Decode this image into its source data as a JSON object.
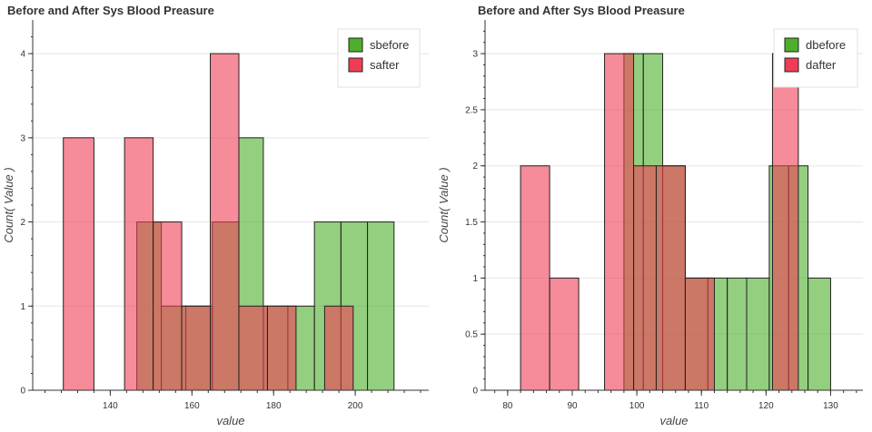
{
  "chart_data": [
    {
      "type": "bar",
      "title": "Before and After Sys Blood Preasure",
      "xlabel": "value",
      "ylabel": "Count( Value )",
      "xlim": [
        121,
        218
      ],
      "ylim": [
        0,
        4.4
      ],
      "xticks": [
        140,
        160,
        180,
        200
      ],
      "yticks": [
        0,
        1,
        2,
        3,
        4
      ],
      "grid": "horizontal",
      "legend_position": "top-right",
      "series": [
        {
          "name": "sbefore",
          "color": "#4daf2a",
          "bins": [
            {
              "x0": 146.5,
              "x1": 152.5,
              "count": 2
            },
            {
              "x0": 152.5,
              "x1": 158.5,
              "count": 1
            },
            {
              "x0": 158.5,
              "x1": 165.0,
              "count": 1
            },
            {
              "x0": 165.0,
              "x1": 171.5,
              "count": 2
            },
            {
              "x0": 171.5,
              "x1": 177.5,
              "count": 3
            },
            {
              "x0": 177.5,
              "x1": 183.5,
              "count": 1
            },
            {
              "x0": 183.5,
              "x1": 190.0,
              "count": 1
            },
            {
              "x0": 190.0,
              "x1": 196.5,
              "count": 2
            },
            {
              "x0": 196.5,
              "x1": 203.0,
              "count": 2
            },
            {
              "x0": 203.0,
              "x1": 209.5,
              "count": 2
            }
          ]
        },
        {
          "name": "safter",
          "color": "#f03d55",
          "bins": [
            {
              "x0": 128.5,
              "x1": 136.0,
              "count": 3
            },
            {
              "x0": 143.5,
              "x1": 150.5,
              "count": 3
            },
            {
              "x0": 150.5,
              "x1": 157.5,
              "count": 2
            },
            {
              "x0": 157.5,
              "x1": 164.5,
              "count": 1
            },
            {
              "x0": 164.5,
              "x1": 171.5,
              "count": 4
            },
            {
              "x0": 171.5,
              "x1": 178.5,
              "count": 1
            },
            {
              "x0": 178.5,
              "x1": 185.5,
              "count": 1
            },
            {
              "x0": 192.5,
              "x1": 199.5,
              "count": 1
            }
          ]
        }
      ]
    },
    {
      "type": "bar",
      "title": "Before and After Sys Blood Preasure",
      "xlabel": "value",
      "ylabel": "Count( Value )",
      "xlim": [
        76.5,
        135
      ],
      "ylim": [
        0,
        3.3
      ],
      "xticks": [
        80,
        90,
        100,
        110,
        120,
        130
      ],
      "yticks": [
        0,
        0.5,
        1,
        1.5,
        2,
        2.5,
        3
      ],
      "grid": "horizontal",
      "legend_position": "top-right",
      "series": [
        {
          "name": "dbefore",
          "color": "#4daf2a",
          "bins": [
            {
              "x0": 98.0,
              "x1": 101.0,
              "count": 3
            },
            {
              "x0": 101.0,
              "x1": 104.0,
              "count": 3
            },
            {
              "x0": 104.0,
              "x1": 107.5,
              "count": 2
            },
            {
              "x0": 107.5,
              "x1": 111.0,
              "count": 1
            },
            {
              "x0": 111.0,
              "x1": 114.0,
              "count": 1
            },
            {
              "x0": 114.0,
              "x1": 117.0,
              "count": 1
            },
            {
              "x0": 117.0,
              "x1": 120.5,
              "count": 1
            },
            {
              "x0": 120.5,
              "x1": 123.5,
              "count": 2
            },
            {
              "x0": 123.5,
              "x1": 126.5,
              "count": 2
            },
            {
              "x0": 126.5,
              "x1": 130.0,
              "count": 1
            }
          ]
        },
        {
          "name": "dafter",
          "color": "#f03d55",
          "bins": [
            {
              "x0": 82.0,
              "x1": 86.5,
              "count": 2
            },
            {
              "x0": 86.5,
              "x1": 91.0,
              "count": 1
            },
            {
              "x0": 95.0,
              "x1": 99.5,
              "count": 3
            },
            {
              "x0": 99.5,
              "x1": 103.0,
              "count": 2
            },
            {
              "x0": 103.0,
              "x1": 107.5,
              "count": 2
            },
            {
              "x0": 107.5,
              "x1": 112.0,
              "count": 1
            },
            {
              "x0": 121.0,
              "x1": 125.0,
              "count": 3
            }
          ]
        }
      ]
    }
  ]
}
